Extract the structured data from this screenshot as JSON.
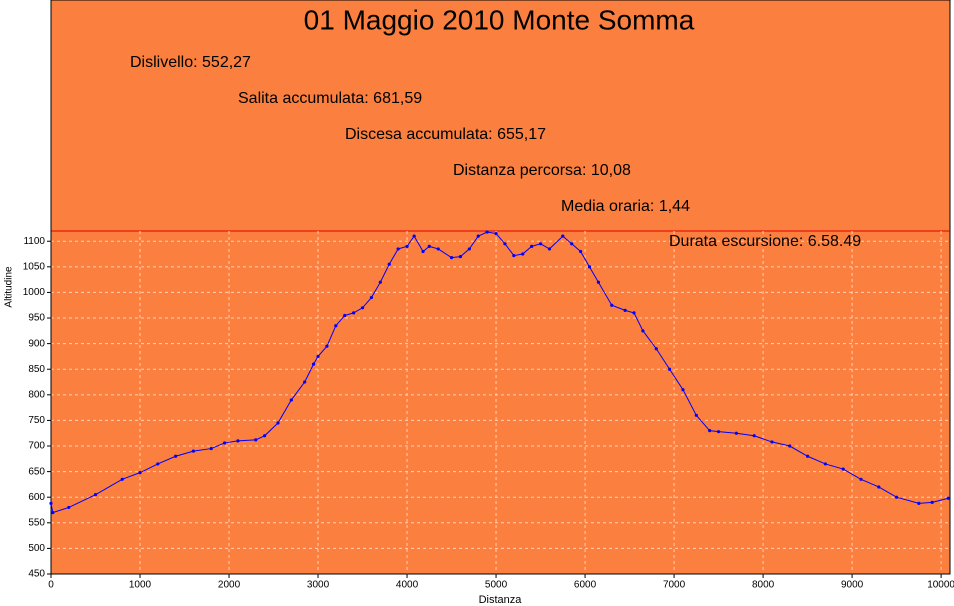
{
  "chart_data": {
    "type": "line",
    "title": "01 Maggio 2010  Monte Somma",
    "annotations": [
      "Dislivello: 552,27",
      "Salita accumulata: 681,59",
      "Discesa accumulata: 655,17",
      "Distanza percorsa: 10,08",
      "Media oraria: 1,44",
      "Durata escursione: 6.58.49"
    ],
    "x_label": "Distanza",
    "y_label": "Altitudine",
    "xlim": [
      0,
      10100
    ],
    "ylim": [
      450,
      1120
    ],
    "xticks": [
      0,
      1000,
      2000,
      3000,
      4000,
      5000,
      6000,
      7000,
      8000,
      9000,
      10000
    ],
    "yticks": [
      450,
      500,
      550,
      600,
      650,
      700,
      750,
      800,
      850,
      900,
      950,
      1000,
      1050,
      1100
    ],
    "grid": true,
    "background": "#fb7f3e",
    "series": [
      {
        "name": "Altitudine",
        "color": "#0000ff",
        "x": [
          0,
          20,
          200,
          500,
          800,
          1000,
          1200,
          1400,
          1600,
          1800,
          1950,
          2100,
          2300,
          2400,
          2550,
          2700,
          2850,
          2950,
          3000,
          3100,
          3200,
          3300,
          3400,
          3500,
          3600,
          3700,
          3800,
          3900,
          4000,
          4080,
          4180,
          4250,
          4350,
          4500,
          4600,
          4700,
          4800,
          4900,
          5000,
          5100,
          5200,
          5300,
          5400,
          5500,
          5600,
          5750,
          5850,
          5950,
          6050,
          6150,
          6300,
          6450,
          6550,
          6650,
          6800,
          6950,
          7100,
          7250,
          7400,
          7500,
          7700,
          7900,
          8100,
          8300,
          8500,
          8700,
          8900,
          9100,
          9300,
          9500,
          9750,
          9900,
          10080
        ],
        "values": [
          588,
          570,
          580,
          605,
          635,
          648,
          665,
          680,
          690,
          695,
          706,
          710,
          712,
          720,
          745,
          790,
          825,
          860,
          875,
          895,
          935,
          955,
          960,
          970,
          990,
          1020,
          1055,
          1085,
          1090,
          1110,
          1080,
          1090,
          1085,
          1068,
          1070,
          1085,
          1110,
          1118,
          1115,
          1095,
          1072,
          1075,
          1090,
          1095,
          1085,
          1110,
          1095,
          1080,
          1050,
          1020,
          975,
          965,
          960,
          925,
          890,
          850,
          810,
          760,
          730,
          728,
          725,
          720,
          708,
          700,
          680,
          665,
          655,
          635,
          620,
          600,
          588,
          590,
          598
        ]
      }
    ]
  }
}
